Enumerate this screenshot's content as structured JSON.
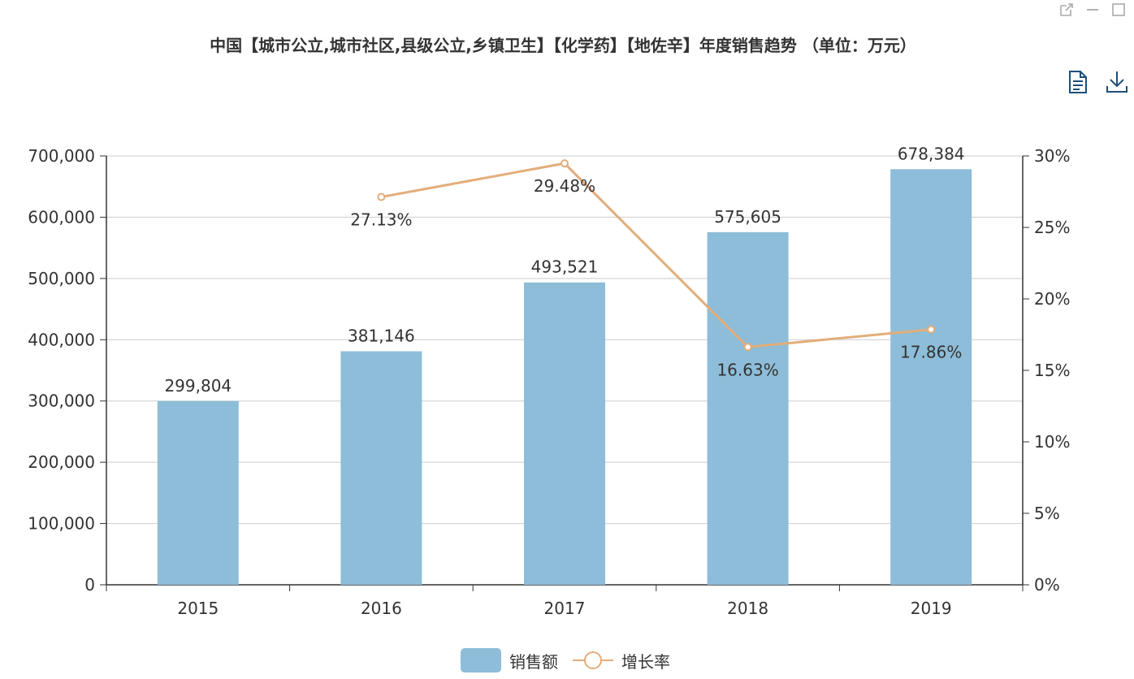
{
  "title": "中国【城市公立,城市社区,县级公立,乡镇卫生】【化学药】【地佐辛】年度销售趋势 （单位：万元）",
  "colors": {
    "bar": "#8dbdd8",
    "line": "#e3ad7a",
    "axis": "#333333",
    "grid": "#cccccc",
    "icon": "#1c4f7a",
    "window_icon": "#aaaaaa"
  },
  "toolbar": {
    "data_view_icon": "document-icon",
    "save_icon": "download-icon"
  },
  "window": {
    "popout_icon": "external-link-icon",
    "minimize_icon": "minimize-icon",
    "maximize_icon": "maximize-icon"
  },
  "chart_data": {
    "type": "bar",
    "categories": [
      "2015",
      "2016",
      "2017",
      "2018",
      "2019"
    ],
    "series": [
      {
        "name": "销售额",
        "type": "bar",
        "axis": "left",
        "values": [
          299804,
          381146,
          493521,
          575605,
          678384
        ],
        "labels": [
          "299,804",
          "381,146",
          "493,521",
          "575,605",
          "678,384"
        ]
      },
      {
        "name": "增长率",
        "type": "line",
        "axis": "right",
        "values": [
          null,
          27.13,
          29.48,
          16.63,
          17.86
        ],
        "labels": [
          "",
          "27.13%",
          "29.48%",
          "16.63%",
          "17.86%"
        ]
      }
    ],
    "y_left": {
      "min": 0,
      "max": 700000,
      "ticks": [
        0,
        100000,
        200000,
        300000,
        400000,
        500000,
        600000,
        700000
      ],
      "tick_labels": [
        "0",
        "100,000",
        "200,000",
        "300,000",
        "400,000",
        "500,000",
        "600,000",
        "700,000"
      ]
    },
    "y_right": {
      "min": 0,
      "max": 30,
      "ticks": [
        0,
        5,
        10,
        15,
        20,
        25,
        30
      ],
      "tick_labels": [
        "0%",
        "5%",
        "10%",
        "15%",
        "20%",
        "25%",
        "30%"
      ]
    },
    "grid": true,
    "legend": "bottom-center"
  }
}
